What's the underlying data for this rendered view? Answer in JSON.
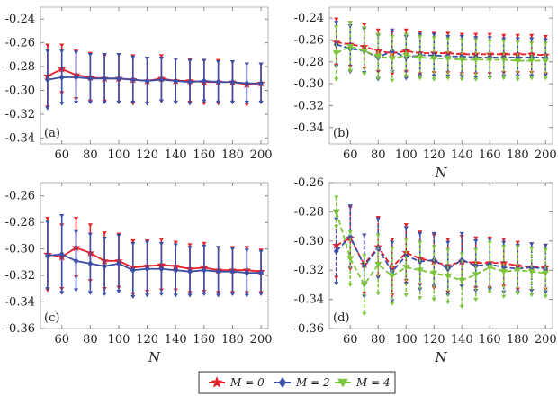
{
  "colors": {
    "M0": "#e8202a",
    "M2": "#3b4fa6",
    "M4": "#7cc43c",
    "frame": "#b3b3b3"
  },
  "legend": [
    {
      "label": "M = 0",
      "color": "#e8202a",
      "marker": "star"
    },
    {
      "label": "M = 2",
      "color": "#3b4fa6",
      "marker": "diamond"
    },
    {
      "label": "M = 4",
      "color": "#7cc43c",
      "marker": "triangle-down"
    }
  ],
  "chart_data": [
    {
      "type": "line",
      "panel": "(a)",
      "xlabel": "",
      "ylabel": "",
      "xlim": [
        45,
        205
      ],
      "ylim": [
        -0.345,
        -0.23
      ],
      "xticks": [
        60,
        80,
        100,
        120,
        140,
        160,
        180,
        200
      ],
      "xtick_labels": [
        "60",
        "80",
        "100",
        "120",
        "140",
        "160",
        "180",
        "200"
      ],
      "yticks": [
        -0.34,
        -0.32,
        -0.3,
        -0.28,
        -0.26,
        -0.24
      ],
      "ytick_labels": [
        "-0.34",
        "-0.32",
        "-0.30",
        "-0.28",
        "-0.26",
        "-0.24"
      ],
      "x": [
        50,
        60,
        70,
        80,
        90,
        100,
        110,
        120,
        130,
        140,
        150,
        160,
        170,
        180,
        190,
        200
      ],
      "series": [
        {
          "key": "M0",
          "style": "solid",
          "values": [
            -0.288,
            -0.282,
            -0.287,
            -0.289,
            -0.29,
            -0.29,
            -0.291,
            -0.292,
            -0.29,
            -0.292,
            -0.292,
            -0.293,
            -0.293,
            -0.293,
            -0.295,
            -0.294
          ],
          "err": [
            0.026,
            0.02,
            0.02,
            0.02,
            0.019,
            0.02,
            0.02,
            0.019,
            0.019,
            0.018,
            0.018,
            0.018,
            0.018,
            0.017,
            0.017,
            0.016
          ]
        },
        {
          "key": "M2",
          "style": "solid",
          "values": [
            -0.291,
            -0.289,
            -0.289,
            -0.29,
            -0.29,
            -0.29,
            -0.291,
            -0.292,
            -0.291,
            -0.292,
            -0.293,
            -0.292,
            -0.293,
            -0.293,
            -0.294,
            -0.294
          ],
          "err": [
            0.024,
            0.022,
            0.021,
            0.02,
            0.02,
            0.02,
            0.019,
            0.019,
            0.018,
            0.018,
            0.018,
            0.017,
            0.017,
            0.017,
            0.016,
            0.016
          ]
        }
      ]
    },
    {
      "type": "line",
      "panel": "(b)",
      "xlabel": "N",
      "ylabel": "",
      "xlim": [
        45,
        205
      ],
      "ylim": [
        -0.355,
        -0.23
      ],
      "xticks": [
        60,
        80,
        100,
        120,
        140,
        160,
        180,
        200
      ],
      "xtick_labels": [
        "60",
        "80",
        "100",
        "120",
        "140",
        "160",
        "180",
        "200"
      ],
      "yticks": [
        -0.34,
        -0.32,
        -0.3,
        -0.28,
        -0.26,
        -0.24
      ],
      "ytick_labels": [
        "-0.34",
        "-0.32",
        "-0.30",
        "-0.28",
        "-0.26",
        "-0.24"
      ],
      "x": [
        50,
        60,
        70,
        80,
        90,
        100,
        110,
        120,
        130,
        140,
        150,
        160,
        170,
        180,
        190,
        200
      ],
      "series": [
        {
          "key": "M0",
          "style": "dashed",
          "values": [
            -0.262,
            -0.264,
            -0.266,
            -0.27,
            -0.272,
            -0.27,
            -0.272,
            -0.272,
            -0.272,
            -0.273,
            -0.273,
            -0.273,
            -0.273,
            -0.273,
            -0.273,
            -0.274
          ],
          "err": [
            0.021,
            0.02,
            0.02,
            0.019,
            0.019,
            0.019,
            0.019,
            0.018,
            0.018,
            0.018,
            0.018,
            0.018,
            0.017,
            0.017,
            0.017,
            0.017
          ]
        },
        {
          "key": "M2",
          "style": "dashed",
          "values": [
            -0.264,
            -0.268,
            -0.27,
            -0.276,
            -0.27,
            -0.276,
            -0.274,
            -0.274,
            -0.275,
            -0.275,
            -0.276,
            -0.276,
            -0.276,
            -0.276,
            -0.276,
            -0.276
          ],
          "err": [
            0.02,
            0.021,
            0.02,
            0.02,
            0.019,
            0.019,
            0.019,
            0.019,
            0.018,
            0.018,
            0.018,
            0.018,
            0.017,
            0.017,
            0.017,
            0.016
          ]
        },
        {
          "key": "M4",
          "style": "dashed",
          "values": [
            -0.272,
            -0.266,
            -0.27,
            -0.275,
            -0.277,
            -0.274,
            -0.276,
            -0.277,
            -0.277,
            -0.278,
            -0.278,
            -0.278,
            -0.278,
            -0.279,
            -0.279,
            -0.279
          ],
          "err": [
            0.024,
            0.022,
            0.021,
            0.02,
            0.02,
            0.019,
            0.019,
            0.019,
            0.018,
            0.018,
            0.018,
            0.017,
            0.017,
            0.017,
            0.016,
            0.016
          ]
        }
      ]
    },
    {
      "type": "line",
      "panel": "(c)",
      "xlabel": "N",
      "ylabel": "",
      "xlim": [
        45,
        205
      ],
      "ylim": [
        -0.36,
        -0.25
      ],
      "xticks": [
        60,
        80,
        100,
        120,
        140,
        160,
        180,
        200
      ],
      "xtick_labels": [
        "60",
        "80",
        "100",
        "120",
        "140",
        "160",
        "180",
        "200"
      ],
      "yticks": [
        -0.36,
        -0.34,
        -0.32,
        -0.3,
        -0.28,
        -0.26
      ],
      "ytick_labels": [
        "-0.36",
        "-0.34",
        "-0.32",
        "-0.30",
        "-0.28",
        "-0.26"
      ],
      "x": [
        50,
        60,
        70,
        80,
        90,
        100,
        110,
        120,
        130,
        140,
        150,
        160,
        170,
        180,
        190,
        200
      ],
      "series": [
        {
          "key": "M0",
          "style": "solid",
          "values": [
            -0.304,
            -0.306,
            -0.299,
            -0.303,
            -0.309,
            -0.309,
            -0.314,
            -0.313,
            -0.312,
            -0.313,
            -0.315,
            -0.314,
            -0.316,
            -0.316,
            -0.316,
            -0.317
          ],
          "err": [
            0.027,
            0.024,
            0.022,
            0.021,
            0.021,
            0.02,
            0.02,
            0.019,
            0.019,
            0.018,
            0.018,
            0.018,
            0.017,
            0.017,
            0.017,
            0.016
          ]
        },
        {
          "key": "M2",
          "style": "solid",
          "values": [
            -0.305,
            -0.304,
            -0.309,
            -0.311,
            -0.313,
            -0.311,
            -0.316,
            -0.315,
            -0.315,
            -0.316,
            -0.317,
            -0.316,
            -0.317,
            -0.317,
            -0.318,
            -0.318
          ],
          "err": [
            0.025,
            0.029,
            0.022,
            0.022,
            0.021,
            0.021,
            0.02,
            0.02,
            0.019,
            0.019,
            0.018,
            0.018,
            0.018,
            0.017,
            0.017,
            0.016
          ]
        }
      ]
    },
    {
      "type": "line",
      "panel": "(d)",
      "xlabel": "N",
      "ylabel": "",
      "xlim": [
        45,
        205
      ],
      "ylim": [
        -0.36,
        -0.26
      ],
      "xticks": [
        60,
        80,
        100,
        120,
        140,
        160,
        180,
        200
      ],
      "xtick_labels": [
        "60",
        "80",
        "100",
        "120",
        "140",
        "160",
        "180",
        "200"
      ],
      "yticks": [
        -0.36,
        -0.34,
        -0.32,
        -0.3,
        -0.28,
        -0.26
      ],
      "ytick_labels": [
        "-0.36",
        "-0.34",
        "-0.32",
        "-0.30",
        "-0.28",
        "-0.26"
      ],
      "x": [
        50,
        60,
        70,
        80,
        90,
        100,
        110,
        120,
        130,
        140,
        150,
        160,
        170,
        180,
        190,
        200
      ],
      "series": [
        {
          "key": "M0",
          "style": "dashed",
          "values": [
            -0.303,
            -0.298,
            -0.316,
            -0.304,
            -0.318,
            -0.308,
            -0.312,
            -0.314,
            -0.317,
            -0.314,
            -0.315,
            -0.315,
            -0.315,
            -0.317,
            -0.318,
            -0.318
          ],
          "err": [
            0.022,
            0.021,
            0.02,
            0.02,
            0.019,
            0.019,
            0.018,
            0.018,
            0.018,
            0.017,
            0.017,
            0.017,
            0.016,
            0.016,
            0.016,
            0.015
          ]
        },
        {
          "key": "M2",
          "style": "dashed",
          "values": [
            -0.307,
            -0.297,
            -0.317,
            -0.305,
            -0.321,
            -0.31,
            -0.314,
            -0.313,
            -0.319,
            -0.313,
            -0.317,
            -0.316,
            -0.318,
            -0.319,
            -0.318,
            -0.319
          ],
          "err": [
            0.022,
            0.021,
            0.021,
            0.02,
            0.02,
            0.019,
            0.019,
            0.018,
            0.018,
            0.018,
            0.017,
            0.017,
            0.017,
            0.016,
            0.016,
            0.016
          ]
        },
        {
          "key": "M4",
          "style": "dashed",
          "values": [
            -0.28,
            -0.312,
            -0.33,
            -0.316,
            -0.324,
            -0.318,
            -0.32,
            -0.322,
            -0.324,
            -0.327,
            -0.323,
            -0.318,
            -0.321,
            -0.32,
            -0.321,
            -0.322
          ],
          "err": [
            0.01,
            0.018,
            0.02,
            0.02,
            0.019,
            0.019,
            0.019,
            0.018,
            0.018,
            0.018,
            0.017,
            0.017,
            0.017,
            0.016,
            0.016,
            0.016
          ]
        }
      ]
    }
  ]
}
